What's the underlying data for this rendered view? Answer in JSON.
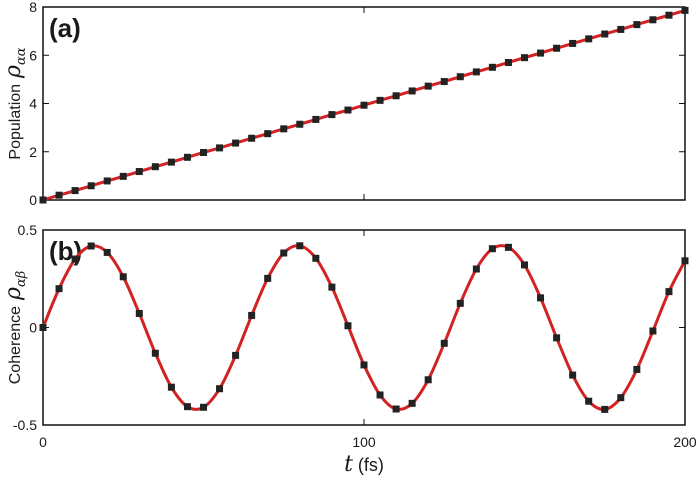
{
  "chart_data": [
    {
      "type": "line",
      "panel_label": "(a)",
      "ylabel": "Population",
      "ylabel_symbol": "ρ",
      "ylabel_subscript": "αα",
      "xlim": [
        0,
        200
      ],
      "xticks": [
        0,
        100,
        200
      ],
      "ylim": [
        0,
        8
      ],
      "yticks": [
        0,
        2,
        4,
        6,
        8
      ],
      "line_color": "#d22222",
      "marker_color": "#222222",
      "x": [
        0,
        5,
        10,
        15,
        20,
        25,
        30,
        35,
        40,
        45,
        50,
        55,
        60,
        65,
        70,
        75,
        80,
        85,
        90,
        95,
        100,
        105,
        110,
        115,
        120,
        125,
        130,
        135,
        140,
        145,
        150,
        155,
        160,
        165,
        170,
        175,
        180,
        185,
        190,
        195,
        200
      ],
      "values": [
        0,
        0.2,
        0.39,
        0.59,
        0.79,
        0.98,
        1.18,
        1.38,
        1.57,
        1.77,
        1.97,
        2.16,
        2.36,
        2.56,
        2.75,
        2.95,
        3.14,
        3.34,
        3.54,
        3.73,
        3.93,
        4.13,
        4.32,
        4.52,
        4.72,
        4.91,
        5.11,
        5.31,
        5.5,
        5.7,
        5.9,
        6.09,
        6.29,
        6.49,
        6.68,
        6.88,
        7.07,
        7.27,
        7.47,
        7.66,
        7.86
      ]
    },
    {
      "type": "line",
      "panel_label": "(b)",
      "ylabel": "Coherence",
      "ylabel_symbol": "ρ",
      "ylabel_subscript": "αβ",
      "xlabel_symbol": "t",
      "xlabel": "(fs)",
      "xlim": [
        0,
        200
      ],
      "xticks": [
        0,
        100,
        200
      ],
      "ylim": [
        -0.5,
        0.5
      ],
      "yticks": [
        -0.5,
        0,
        0.5
      ],
      "line_color": "#d22222",
      "marker_color": "#222222",
      "x": [
        0,
        5,
        10,
        15,
        20,
        25,
        30,
        35,
        40,
        45,
        50,
        55,
        60,
        65,
        70,
        75,
        80,
        85,
        90,
        95,
        100,
        105,
        110,
        115,
        120,
        125,
        130,
        135,
        140,
        145,
        150,
        155,
        160,
        165,
        170,
        175,
        180,
        185,
        190,
        195,
        200
      ],
      "values": [
        0,
        0.199,
        0.351,
        0.418,
        0.385,
        0.26,
        0.072,
        -0.132,
        -0.306,
        -0.406,
        -0.409,
        -0.314,
        -0.143,
        0.062,
        0.252,
        0.382,
        0.419,
        0.355,
        0.207,
        0.009,
        -0.192,
        -0.346,
        -0.418,
        -0.389,
        -0.268,
        -0.081,
        0.124,
        0.3,
        0.404,
        0.411,
        0.321,
        0.152,
        -0.053,
        -0.244,
        -0.378,
        -0.42,
        -0.36,
        -0.215,
        -0.018,
        0.184,
        0.342
      ]
    }
  ]
}
